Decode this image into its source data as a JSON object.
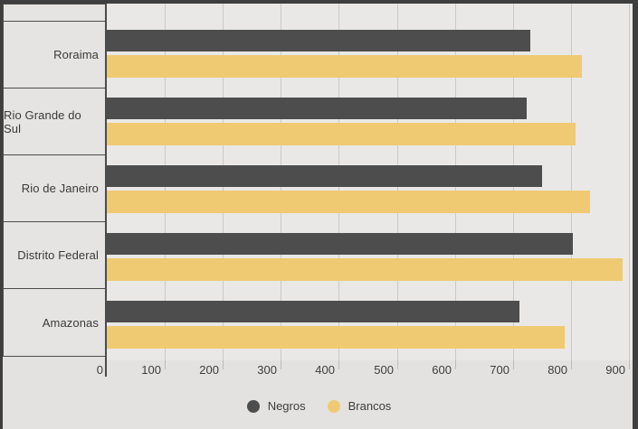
{
  "chart_data": {
    "type": "bar",
    "orientation": "horizontal",
    "title": "",
    "xlabel": "",
    "ylabel": "",
    "categories": [
      "Roraima",
      "Rio Grande do Sul",
      "Rio de Janeiro",
      "Distrito Federal",
      "Amazonas"
    ],
    "series": [
      {
        "name": "Negros",
        "color": "#4d4d4d",
        "values": [
          730,
          723,
          750,
          804,
          712
        ]
      },
      {
        "name": "Brancos",
        "color": "#f0ca73",
        "values": [
          819,
          808,
          833,
          889,
          789
        ]
      }
    ],
    "xlim": [
      0,
      900
    ],
    "x_ticks": [
      0,
      100,
      200,
      300,
      400,
      500,
      600,
      700,
      800,
      900
    ],
    "grid": true,
    "legend_position": "bottom"
  },
  "colors": {
    "frame": "#3e3e3e",
    "outer_background": "#e3e2e0",
    "plot_background": "#e9e8e6",
    "gridline": "#cac9c7",
    "axis_line": "#4a4a4a",
    "text": "#3d3d3d",
    "category_box_fill": "#e5e4e2",
    "category_box_border": "#4c4c4c"
  }
}
